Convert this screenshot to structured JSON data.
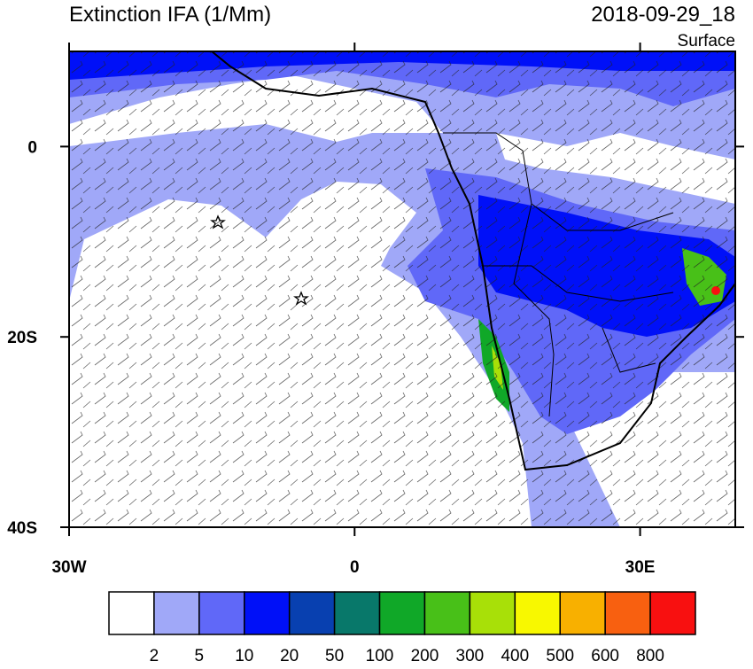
{
  "header": {
    "title": "Extinction IFA (1/Mm)",
    "time": "2018-09-29_18",
    "level": "Surface"
  },
  "map": {
    "xlim": [
      -30,
      40
    ],
    "ylim": [
      -40,
      10
    ],
    "xticks": [
      {
        "value": -30,
        "label": "30W"
      },
      0,
      {
        "value": 30,
        "label": "30E"
      }
    ],
    "yticks": [
      0,
      {
        "value": -20,
        "label": "20S"
      },
      {
        "value": -40,
        "label": "40S"
      }
    ]
  },
  "colorbar": {
    "colors": [
      "#ffffff",
      "#a0a8f8",
      "#6068f8",
      "#0010f8",
      "#0840b0",
      "#08786a",
      "#10a828",
      "#48c018",
      "#a8e008",
      "#f8f800",
      "#f8b000",
      "#f86010",
      "#f81010"
    ],
    "levels": [
      2,
      5,
      10,
      20,
      50,
      100,
      200,
      300,
      400,
      500,
      600,
      800
    ]
  }
}
